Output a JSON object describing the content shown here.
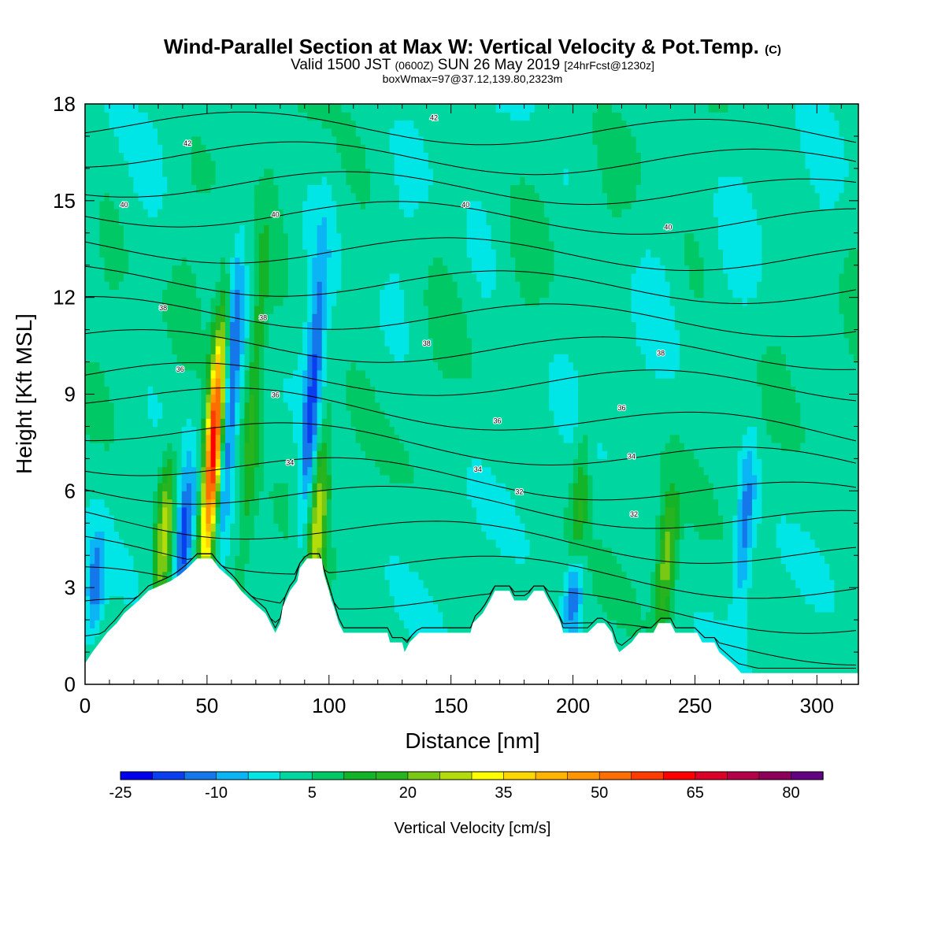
{
  "title": {
    "main": "Wind-Parallel Section at Max W: Vertical Velocity & Pot.Temp.",
    "copyright": "(C)"
  },
  "subtitle": {
    "valid_prefix": "Valid 1500 JST",
    "zulu": "(0600Z)",
    "date": "SUN 26 May 2019",
    "forecast": "[24hrFcst@1230z]"
  },
  "box_line": "boxWmax=97@37.12,139.80,2323m",
  "colors": {
    "terrain": "#ffffff",
    "contour": "#000000",
    "scale": [
      "#0000ee",
      "#0a3ff0",
      "#1478ea",
      "#0ab4f5",
      "#00e6e6",
      "#00d7a0",
      "#00c864",
      "#14b428",
      "#28b41e",
      "#78c814",
      "#b4dc0a",
      "#ffff00",
      "#ffd700",
      "#ffb400",
      "#ff9600",
      "#ff6e00",
      "#ff3c00",
      "#ff0000",
      "#dc0028",
      "#b40046",
      "#8c005a",
      "#640082"
    ]
  },
  "chart_data": {
    "type": "heatmap",
    "xlabel": "Distance [nm]",
    "ylabel": "Height [Kft MSL]",
    "xlim": [
      0,
      317
    ],
    "ylim": [
      0,
      18
    ],
    "xticks": [
      0,
      50,
      100,
      150,
      200,
      250,
      300
    ],
    "yticks": [
      0,
      3,
      6,
      9,
      12,
      15,
      18
    ],
    "colorbar": {
      "label": "Vertical Velocity [cm/s]",
      "ticks": [
        -25,
        -10,
        5,
        20,
        35,
        50,
        65,
        80
      ],
      "range": [
        -25,
        90
      ],
      "step": 5
    },
    "max_w": {
      "value_cm_s": 97,
      "x_nm": 52,
      "height_kft": 8.5
    },
    "updrafts": [
      {
        "x": 32,
        "top": 7.5,
        "w": 25
      },
      {
        "x": 52,
        "top": 11.8,
        "w": 65
      },
      {
        "x": 68,
        "top": 14.0,
        "w": 15
      },
      {
        "x": 95,
        "top": 8.2,
        "w": 25
      },
      {
        "x": 238,
        "top": 6.2,
        "w": 22
      },
      {
        "x": 202,
        "top": 8.5,
        "w": 13
      }
    ],
    "downdrafts": [
      {
        "x": 4,
        "top": 5.0,
        "w": -15
      },
      {
        "x": 40,
        "top": 7.0,
        "w": -22
      },
      {
        "x": 58,
        "top": 14.0,
        "w": -20
      },
      {
        "x": 92,
        "top": 14.0,
        "w": -18
      },
      {
        "x": 200,
        "top": 4.5,
        "w": -22
      },
      {
        "x": 270,
        "top": 8.0,
        "w": -15
      }
    ],
    "theta_labels": [
      {
        "text": "42",
        "x": 42,
        "y": 16.7
      },
      {
        "text": "42",
        "x": 143,
        "y": 17.5
      },
      {
        "text": "40",
        "x": 16,
        "y": 14.8
      },
      {
        "text": "40",
        "x": 78,
        "y": 14.5
      },
      {
        "text": "40",
        "x": 156,
        "y": 14.8
      },
      {
        "text": "40",
        "x": 239,
        "y": 14.1
      },
      {
        "text": "38",
        "x": 32,
        "y": 11.6
      },
      {
        "text": "38",
        "x": 73,
        "y": 11.3
      },
      {
        "text": "38",
        "x": 140,
        "y": 10.5
      },
      {
        "text": "38",
        "x": 236,
        "y": 10.2
      },
      {
        "text": "36",
        "x": 39,
        "y": 9.7
      },
      {
        "text": "36",
        "x": 78,
        "y": 8.9
      },
      {
        "text": "36",
        "x": 169,
        "y": 8.1
      },
      {
        "text": "36",
        "x": 220,
        "y": 8.5
      },
      {
        "text": "34",
        "x": 84,
        "y": 6.8
      },
      {
        "text": "34",
        "x": 161,
        "y": 6.6
      },
      {
        "text": "34",
        "x": 224,
        "y": 7.0
      },
      {
        "text": "32",
        "x": 178,
        "y": 5.9
      },
      {
        "text": "32",
        "x": 225,
        "y": 5.2
      }
    ],
    "terrain_profile": [
      [
        0,
        0.65
      ],
      [
        3,
        1.0
      ],
      [
        6,
        1.3
      ],
      [
        9,
        1.6
      ],
      [
        13,
        1.9
      ],
      [
        16,
        2.2
      ],
      [
        19,
        2.4
      ],
      [
        22,
        2.6
      ],
      [
        26,
        2.9
      ],
      [
        35,
        3.2
      ],
      [
        39,
        3.4
      ],
      [
        42,
        3.6
      ],
      [
        46,
        3.9
      ],
      [
        52,
        3.9
      ],
      [
        55,
        3.6
      ],
      [
        58,
        3.4
      ],
      [
        61,
        3.2
      ],
      [
        64,
        2.9
      ],
      [
        68,
        2.6
      ],
      [
        71,
        2.4
      ],
      [
        74,
        2.2
      ],
      [
        76,
        1.9
      ],
      [
        78,
        1.6
      ],
      [
        80,
        1.9
      ],
      [
        81,
        2.4
      ],
      [
        84,
        2.9
      ],
      [
        87,
        3.2
      ],
      [
        88,
        3.6
      ],
      [
        91,
        3.9
      ],
      [
        97,
        3.9
      ],
      [
        98,
        3.4
      ],
      [
        100,
        2.9
      ],
      [
        101,
        2.6
      ],
      [
        102,
        2.4
      ],
      [
        104,
        1.9
      ],
      [
        106,
        1.6
      ],
      [
        124,
        1.6
      ],
      [
        125,
        1.3
      ],
      [
        130,
        1.3
      ],
      [
        131,
        1.0
      ],
      [
        133,
        1.3
      ],
      [
        137,
        1.6
      ],
      [
        158,
        1.6
      ],
      [
        159,
        1.9
      ],
      [
        163,
        2.2
      ],
      [
        166,
        2.6
      ],
      [
        168,
        2.9
      ],
      [
        174,
        2.9
      ],
      [
        176,
        2.6
      ],
      [
        181,
        2.6
      ],
      [
        184,
        2.9
      ],
      [
        188,
        2.9
      ],
      [
        190,
        2.6
      ],
      [
        193,
        2.2
      ],
      [
        195,
        1.9
      ],
      [
        196,
        1.6
      ],
      [
        206,
        1.6
      ],
      [
        210,
        1.9
      ],
      [
        213,
        1.9
      ],
      [
        216,
        1.6
      ],
      [
        217,
        1.3
      ],
      [
        219,
        1.0
      ],
      [
        224,
        1.3
      ],
      [
        227,
        1.6
      ],
      [
        233,
        1.6
      ],
      [
        235,
        1.9
      ],
      [
        240,
        1.9
      ],
      [
        242,
        1.6
      ],
      [
        251,
        1.6
      ],
      [
        253,
        1.3
      ],
      [
        258,
        1.3
      ],
      [
        260,
        1.0
      ],
      [
        263,
        0.8
      ],
      [
        266,
        0.6
      ],
      [
        269,
        0.35
      ],
      [
        317,
        0.35
      ]
    ]
  }
}
